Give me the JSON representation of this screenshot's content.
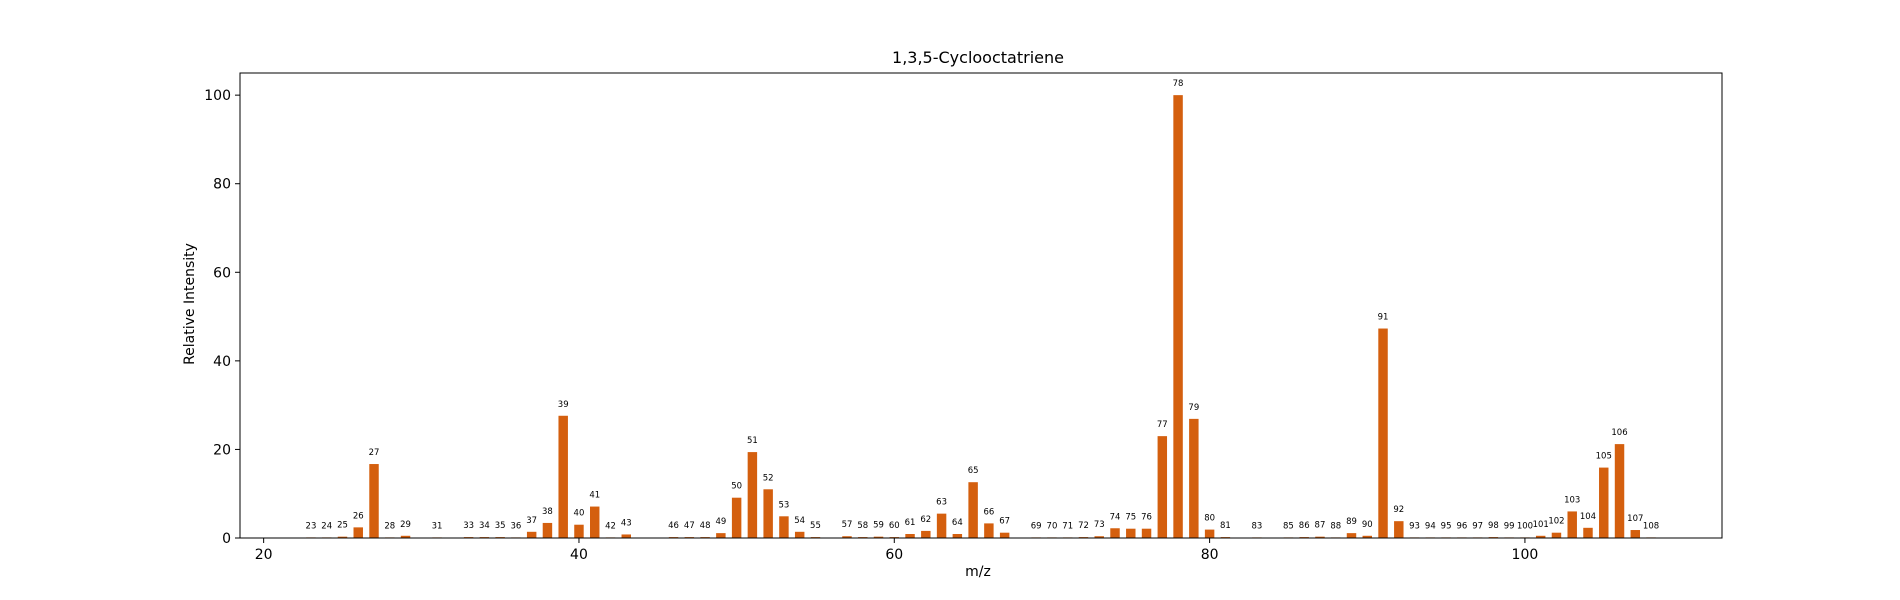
{
  "chart_data": {
    "type": "bar",
    "title": "1,3,5-Cyclooctatriene",
    "xlabel": "m/z",
    "ylabel": "Relative Intensity",
    "xlim": [
      18.5,
      112.5
    ],
    "ylim": [
      0,
      105
    ],
    "xticks": [
      20,
      40,
      60,
      80,
      100
    ],
    "yticks": [
      0,
      20,
      40,
      60,
      80,
      100
    ],
    "bar_color": "#d45f0e",
    "grid": false,
    "legend": "none",
    "peaks": [
      {
        "mz": 23,
        "intensity": 0.1
      },
      {
        "mz": 24,
        "intensity": 0.1
      },
      {
        "mz": 25,
        "intensity": 0.3
      },
      {
        "mz": 26,
        "intensity": 2.4
      },
      {
        "mz": 27,
        "intensity": 16.7
      },
      {
        "mz": 28,
        "intensity": 0.1
      },
      {
        "mz": 29,
        "intensity": 0.5
      },
      {
        "mz": 31,
        "intensity": 0.1
      },
      {
        "mz": 33,
        "intensity": 0.2
      },
      {
        "mz": 34,
        "intensity": 0.2
      },
      {
        "mz": 35,
        "intensity": 0.2
      },
      {
        "mz": 36,
        "intensity": 0.1
      },
      {
        "mz": 37,
        "intensity": 1.4
      },
      {
        "mz": 38,
        "intensity": 3.4
      },
      {
        "mz": 39,
        "intensity": 27.6
      },
      {
        "mz": 40,
        "intensity": 3.0
      },
      {
        "mz": 41,
        "intensity": 7.1
      },
      {
        "mz": 42,
        "intensity": 0.1
      },
      {
        "mz": 43,
        "intensity": 0.8
      },
      {
        "mz": 46,
        "intensity": 0.2
      },
      {
        "mz": 47,
        "intensity": 0.2
      },
      {
        "mz": 48,
        "intensity": 0.2
      },
      {
        "mz": 49,
        "intensity": 1.1
      },
      {
        "mz": 50,
        "intensity": 9.1
      },
      {
        "mz": 51,
        "intensity": 19.4
      },
      {
        "mz": 52,
        "intensity": 11.0
      },
      {
        "mz": 53,
        "intensity": 4.9
      },
      {
        "mz": 54,
        "intensity": 1.4
      },
      {
        "mz": 55,
        "intensity": 0.2
      },
      {
        "mz": 57,
        "intensity": 0.4
      },
      {
        "mz": 58,
        "intensity": 0.2
      },
      {
        "mz": 59,
        "intensity": 0.3
      },
      {
        "mz": 60,
        "intensity": 0.2
      },
      {
        "mz": 61,
        "intensity": 0.9
      },
      {
        "mz": 62,
        "intensity": 1.6
      },
      {
        "mz": 63,
        "intensity": 5.5
      },
      {
        "mz": 64,
        "intensity": 0.9
      },
      {
        "mz": 65,
        "intensity": 12.6
      },
      {
        "mz": 66,
        "intensity": 3.3
      },
      {
        "mz": 67,
        "intensity": 1.2
      },
      {
        "mz": 69,
        "intensity": 0.1
      },
      {
        "mz": 70,
        "intensity": 0.1
      },
      {
        "mz": 71,
        "intensity": 0.1
      },
      {
        "mz": 72,
        "intensity": 0.2
      },
      {
        "mz": 73,
        "intensity": 0.4
      },
      {
        "mz": 74,
        "intensity": 2.2
      },
      {
        "mz": 75,
        "intensity": 2.1
      },
      {
        "mz": 76,
        "intensity": 2.1
      },
      {
        "mz": 77,
        "intensity": 23.0
      },
      {
        "mz": 78,
        "intensity": 100.0
      },
      {
        "mz": 79,
        "intensity": 26.9
      },
      {
        "mz": 80,
        "intensity": 1.9
      },
      {
        "mz": 81,
        "intensity": 0.2
      },
      {
        "mz": 83,
        "intensity": 0.1
      },
      {
        "mz": 85,
        "intensity": 0.1
      },
      {
        "mz": 86,
        "intensity": 0.2
      },
      {
        "mz": 87,
        "intensity": 0.3
      },
      {
        "mz": 88,
        "intensity": 0.1
      },
      {
        "mz": 89,
        "intensity": 1.1
      },
      {
        "mz": 90,
        "intensity": 0.5
      },
      {
        "mz": 91,
        "intensity": 47.3
      },
      {
        "mz": 92,
        "intensity": 3.8
      },
      {
        "mz": 93,
        "intensity": 0.1
      },
      {
        "mz": 94,
        "intensity": 0.1
      },
      {
        "mz": 95,
        "intensity": 0.1
      },
      {
        "mz": 96,
        "intensity": 0.1
      },
      {
        "mz": 97,
        "intensity": 0.1
      },
      {
        "mz": 98,
        "intensity": 0.2
      },
      {
        "mz": 99,
        "intensity": 0.1
      },
      {
        "mz": 100,
        "intensity": 0.1
      },
      {
        "mz": 101,
        "intensity": 0.5
      },
      {
        "mz": 102,
        "intensity": 1.2
      },
      {
        "mz": 103,
        "intensity": 6.0
      },
      {
        "mz": 104,
        "intensity": 2.3
      },
      {
        "mz": 105,
        "intensity": 15.9
      },
      {
        "mz": 106,
        "intensity": 21.2
      },
      {
        "mz": 107,
        "intensity": 1.8
      },
      {
        "mz": 108,
        "intensity": 0.1
      }
    ]
  }
}
